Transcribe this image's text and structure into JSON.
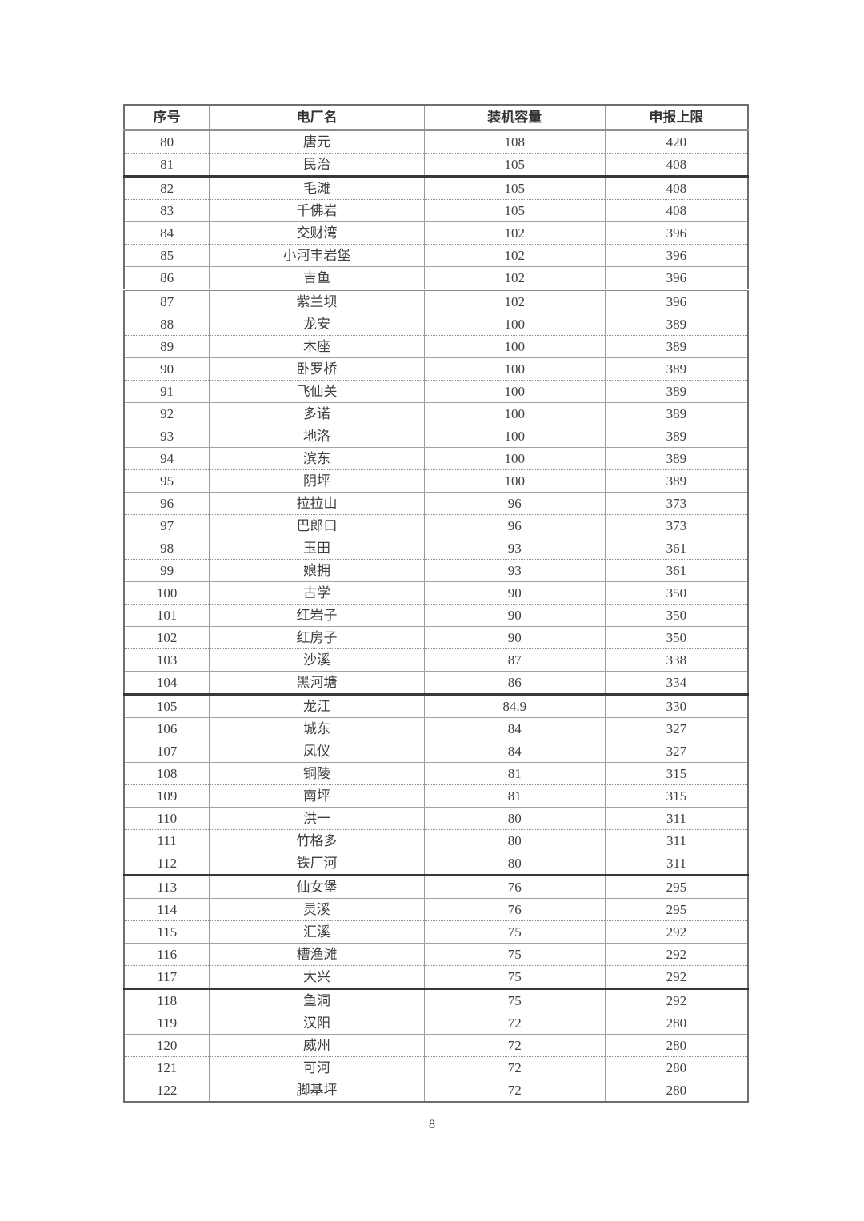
{
  "table": {
    "headers": [
      "序号",
      "电厂名",
      "装机容量",
      "申报上限"
    ],
    "rows": [
      [
        "80",
        "唐元",
        "108",
        "420"
      ],
      [
        "81",
        "民治",
        "105",
        "408"
      ],
      [
        "82",
        "毛滩",
        "105",
        "408"
      ],
      [
        "83",
        "千佛岩",
        "105",
        "408"
      ],
      [
        "84",
        "交财湾",
        "102",
        "396"
      ],
      [
        "85",
        "小河丰岩堡",
        "102",
        "396"
      ],
      [
        "86",
        "吉鱼",
        "102",
        "396"
      ],
      [
        "87",
        "紫兰坝",
        "102",
        "396"
      ],
      [
        "88",
        "龙安",
        "100",
        "389"
      ],
      [
        "89",
        "木座",
        "100",
        "389"
      ],
      [
        "90",
        "卧罗桥",
        "100",
        "389"
      ],
      [
        "91",
        "飞仙关",
        "100",
        "389"
      ],
      [
        "92",
        "多诺",
        "100",
        "389"
      ],
      [
        "93",
        "地洛",
        "100",
        "389"
      ],
      [
        "94",
        "滨东",
        "100",
        "389"
      ],
      [
        "95",
        "阴坪",
        "100",
        "389"
      ],
      [
        "96",
        "拉拉山",
        "96",
        "373"
      ],
      [
        "97",
        "巴郎口",
        "96",
        "373"
      ],
      [
        "98",
        "玉田",
        "93",
        "361"
      ],
      [
        "99",
        "娘拥",
        "93",
        "361"
      ],
      [
        "100",
        "古学",
        "90",
        "350"
      ],
      [
        "101",
        "红岩子",
        "90",
        "350"
      ],
      [
        "102",
        "红房子",
        "90",
        "350"
      ],
      [
        "103",
        "沙溪",
        "87",
        "338"
      ],
      [
        "104",
        "黑河塘",
        "86",
        "334"
      ],
      [
        "105",
        "龙江",
        "84.9",
        "330"
      ],
      [
        "106",
        "城东",
        "84",
        "327"
      ],
      [
        "107",
        "凤仪",
        "84",
        "327"
      ],
      [
        "108",
        "铜陵",
        "81",
        "315"
      ],
      [
        "109",
        "南坪",
        "81",
        "315"
      ],
      [
        "110",
        "洪一",
        "80",
        "311"
      ],
      [
        "111",
        "竹格多",
        "80",
        "311"
      ],
      [
        "112",
        "铁厂河",
        "80",
        "311"
      ],
      [
        "113",
        "仙女堡",
        "76",
        "295"
      ],
      [
        "114",
        "灵溪",
        "76",
        "295"
      ],
      [
        "115",
        "汇溪",
        "75",
        "292"
      ],
      [
        "116",
        "槽渔滩",
        "75",
        "292"
      ],
      [
        "117",
        "大兴",
        "75",
        "292"
      ],
      [
        "118",
        "鱼洞",
        "75",
        "292"
      ],
      [
        "119",
        "汉阳",
        "72",
        "280"
      ],
      [
        "120",
        "威州",
        "72",
        "280"
      ],
      [
        "121",
        "可河",
        "72",
        "280"
      ],
      [
        "122",
        "脚基坪",
        "72",
        "280"
      ]
    ]
  },
  "page_number": "8",
  "colors": {
    "text": "#3f3f3f",
    "border_light": "#9b9b9b",
    "border_thick": "#383838"
  }
}
